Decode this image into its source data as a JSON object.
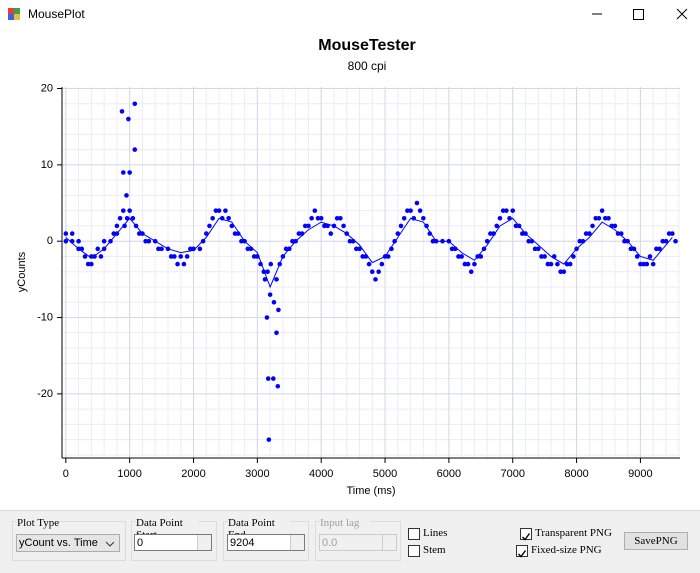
{
  "window": {
    "title": "MousePlot"
  },
  "chart_data": {
    "type": "scatter",
    "title": "MouseTester",
    "subtitle": "800 cpi",
    "x_label": "Time (ms)",
    "y_label": "yCounts",
    "xlim": [
      -60,
      9620
    ],
    "ylim": [
      -28.4,
      20.2
    ],
    "xticks": [
      0,
      1000,
      2000,
      3000,
      4000,
      5000,
      6000,
      7000,
      8000,
      9000
    ],
    "yticks": [
      -20,
      -10,
      0,
      10,
      20
    ],
    "grid": true,
    "series": [
      {
        "color": "#0000ff",
        "style": "markers",
        "x": [
          0,
          0,
          100,
          100,
          200,
          200,
          250,
          300,
          350,
          400,
          400,
          450,
          500,
          550,
          600,
          600,
          700,
          750,
          800,
          800,
          850,
          880,
          900,
          900,
          920,
          950,
          960,
          980,
          1000,
          1000,
          1050,
          1080,
          1080,
          1100,
          1150,
          1200,
          1250,
          1300,
          1400,
          1450,
          1500,
          1600,
          1650,
          1700,
          1750,
          1800,
          1850,
          1900,
          1950,
          2000,
          2100,
          2150,
          2200,
          2250,
          2300,
          2350,
          2400,
          2450,
          2500,
          2550,
          2600,
          2650,
          2700,
          2750,
          2800,
          2850,
          2900,
          2950,
          3000,
          3050,
          3100,
          3120,
          3150,
          3160,
          3170,
          3180,
          3200,
          3210,
          3250,
          3260,
          3300,
          3300,
          3320,
          3330,
          3350,
          3400,
          3450,
          3500,
          3550,
          3600,
          3650,
          3700,
          3750,
          3800,
          3850,
          3900,
          3950,
          4000,
          4050,
          4100,
          4150,
          4200,
          4250,
          4300,
          4350,
          4400,
          4450,
          4500,
          4550,
          4600,
          4650,
          4700,
          4750,
          4800,
          4850,
          4900,
          4950,
          5000,
          5050,
          5100,
          5150,
          5200,
          5250,
          5300,
          5350,
          5400,
          5450,
          5500,
          5550,
          5600,
          5650,
          5700,
          5750,
          5800,
          5900,
          6000,
          6050,
          6100,
          6150,
          6200,
          6250,
          6300,
          6350,
          6400,
          6450,
          6500,
          6550,
          6600,
          6650,
          6700,
          6750,
          6800,
          6850,
          6900,
          6950,
          7000,
          7050,
          7100,
          7150,
          7200,
          7250,
          7300,
          7350,
          7400,
          7450,
          7500,
          7550,
          7600,
          7650,
          7700,
          7750,
          7800,
          7850,
          7900,
          7950,
          8000,
          8050,
          8100,
          8150,
          8200,
          8250,
          8300,
          8350,
          8400,
          8450,
          8500,
          8550,
          8600,
          8650,
          8700,
          8750,
          8800,
          8850,
          8900,
          8950,
          9000,
          9050,
          9100,
          9150,
          9200,
          9250,
          9300,
          9350,
          9400,
          9450,
          9500,
          9550
        ],
        "values": [
          1,
          0,
          0,
          1,
          -1,
          0,
          -1,
          -2,
          -3,
          -3,
          -2,
          -2,
          -1,
          -2,
          -1,
          0,
          0,
          1,
          1,
          2,
          3,
          17,
          9,
          4,
          2,
          6,
          3,
          16,
          4,
          9,
          3,
          18,
          12,
          2,
          1,
          1,
          0,
          0,
          0,
          -1,
          -1,
          -1,
          -2,
          -2,
          -3,
          -2,
          -3,
          -2,
          -1,
          -1,
          -1,
          0,
          1,
          2,
          3,
          4,
          4,
          3,
          4,
          3,
          2,
          1,
          1,
          0,
          0,
          -1,
          -1,
          -2,
          -2,
          -3,
          -4,
          -5,
          -10,
          -4,
          -18,
          -26,
          -7,
          -3,
          -18,
          -8,
          -5,
          -12,
          -19,
          -9,
          -3,
          -2,
          -1,
          -1,
          0,
          0,
          1,
          1,
          2,
          2,
          3,
          4,
          3,
          3,
          2,
          2,
          1,
          2,
          3,
          3,
          2,
          1,
          0,
          0,
          -1,
          -1,
          -2,
          -2,
          -3,
          -4,
          -5,
          -4,
          -3,
          -2,
          -2,
          -1,
          0,
          1,
          2,
          3,
          4,
          4,
          3,
          5,
          4,
          3,
          2,
          1,
          0,
          0,
          0,
          0,
          -1,
          -1,
          -2,
          -2,
          -3,
          -3,
          -4,
          -3,
          -2,
          -2,
          -1,
          0,
          1,
          1,
          2,
          3,
          4,
          4,
          3,
          4,
          2,
          2,
          1,
          1,
          0,
          0,
          -1,
          -1,
          -2,
          -2,
          -3,
          -3,
          -2,
          -3,
          -4,
          -4,
          -3,
          -3,
          -2,
          -1,
          0,
          0,
          1,
          1,
          2,
          3,
          3,
          4,
          3,
          3,
          2,
          2,
          1,
          1,
          0,
          0,
          -1,
          -1,
          -2,
          -3,
          -3,
          -3,
          -2,
          -3,
          -1,
          -1,
          0,
          0,
          1,
          1,
          0
        ]
      },
      {
        "color": "#0000ff",
        "style": "line",
        "x": [
          0,
          200,
          400,
          600,
          800,
          1000,
          1200,
          1400,
          1600,
          1800,
          2000,
          2200,
          2400,
          2600,
          2800,
          3000,
          3200,
          3400,
          3600,
          3800,
          4000,
          4200,
          4400,
          4600,
          4800,
          5000,
          5200,
          5400,
          5600,
          5800,
          6000,
          6200,
          6400,
          6600,
          6800,
          7000,
          7200,
          7400,
          7600,
          7800,
          8000,
          8200,
          8400,
          8600,
          8800,
          9000,
          9200,
          9400,
          9500
        ],
        "values": [
          0.5,
          -1,
          -2.2,
          -1,
          1,
          3,
          1,
          0,
          -1,
          -1.5,
          -1.2,
          0.5,
          3,
          2.5,
          0,
          -1.5,
          -6,
          -2,
          0,
          1.5,
          2.5,
          2,
          1,
          -0.5,
          -2.8,
          -2,
          0.5,
          3,
          2.5,
          0,
          0,
          -1.5,
          -2.5,
          -0.5,
          2,
          3,
          1,
          -0.5,
          -2,
          -3,
          -1,
          0.5,
          2.5,
          1.5,
          0,
          -2,
          -2.5,
          -0.5,
          0.5
        ]
      }
    ]
  },
  "controls": {
    "plot_type": {
      "label": "Plot Type",
      "value": "yCount vs. Time"
    },
    "data_point_start": {
      "label": "Data Point Start",
      "value": "0"
    },
    "data_point_end": {
      "label": "Data Point End",
      "value": "9204"
    },
    "input_lag": {
      "label": "Input lag",
      "value": "0.0",
      "enabled": false
    },
    "lines": {
      "label": "Lines",
      "checked": false
    },
    "stem": {
      "label": "Stem",
      "checked": false
    },
    "transparent_png": {
      "label": "Transparent PNG",
      "checked": true
    },
    "fixed_size_png": {
      "label": "Fixed-size PNG",
      "checked": true
    },
    "save_png": {
      "label": "SavePNG"
    }
  }
}
